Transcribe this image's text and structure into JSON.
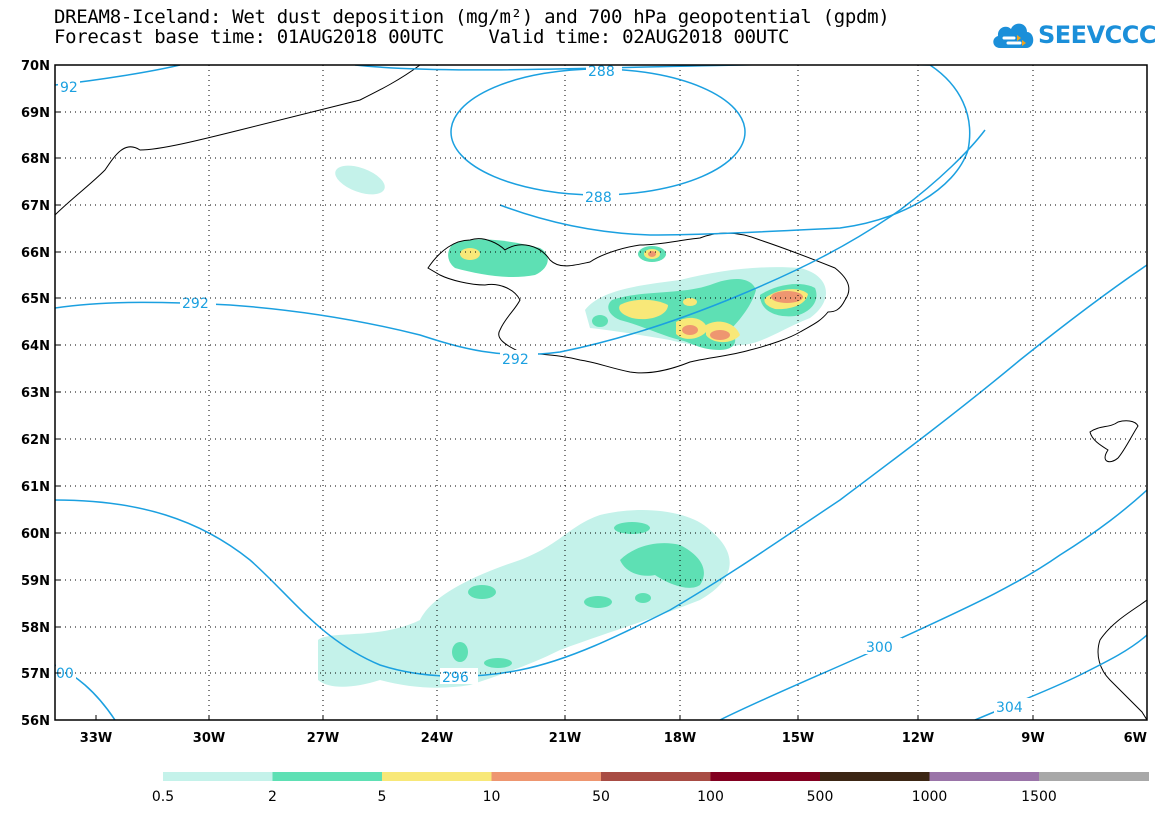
{
  "header": {
    "title_line1": "DREAM8-Iceland: Wet dust deposition (mg/m²) and 700 hPa geopotential (gpdm)",
    "title_line2": "Forecast base time: 01AUG2018 00UTC    Valid time: 02AUG2018 00UTC"
  },
  "logo": {
    "text": "SEEVCCC",
    "icon": "cloud-icon",
    "color": "#1b8fd9"
  },
  "map": {
    "lat_labels": [
      "70N",
      "69N",
      "68N",
      "67N",
      "66N",
      "65N",
      "64N",
      "63N",
      "62N",
      "61N",
      "60N",
      "59N",
      "58N",
      "57N",
      "56N"
    ],
    "lon_labels": [
      "33W",
      "30W",
      "27W",
      "24W",
      "21W",
      "18W",
      "15W",
      "12W",
      "9W",
      "6W"
    ],
    "contour_color": "#1ba0e0",
    "contour_labels": [
      "92",
      "288",
      "288",
      "292",
      "292",
      "296",
      "300",
      "304",
      "00"
    ]
  },
  "colorbar": {
    "colors": [
      "#c4f2ea",
      "#5ee0b4",
      "#f8e878",
      "#ee9670",
      "#a84c44",
      "#820020",
      "#3c2614",
      "#9a74a8",
      "#a8a8a8"
    ],
    "labels": [
      "0.5",
      "2",
      "5",
      "10",
      "50",
      "100",
      "500",
      "1000",
      "1500"
    ]
  }
}
